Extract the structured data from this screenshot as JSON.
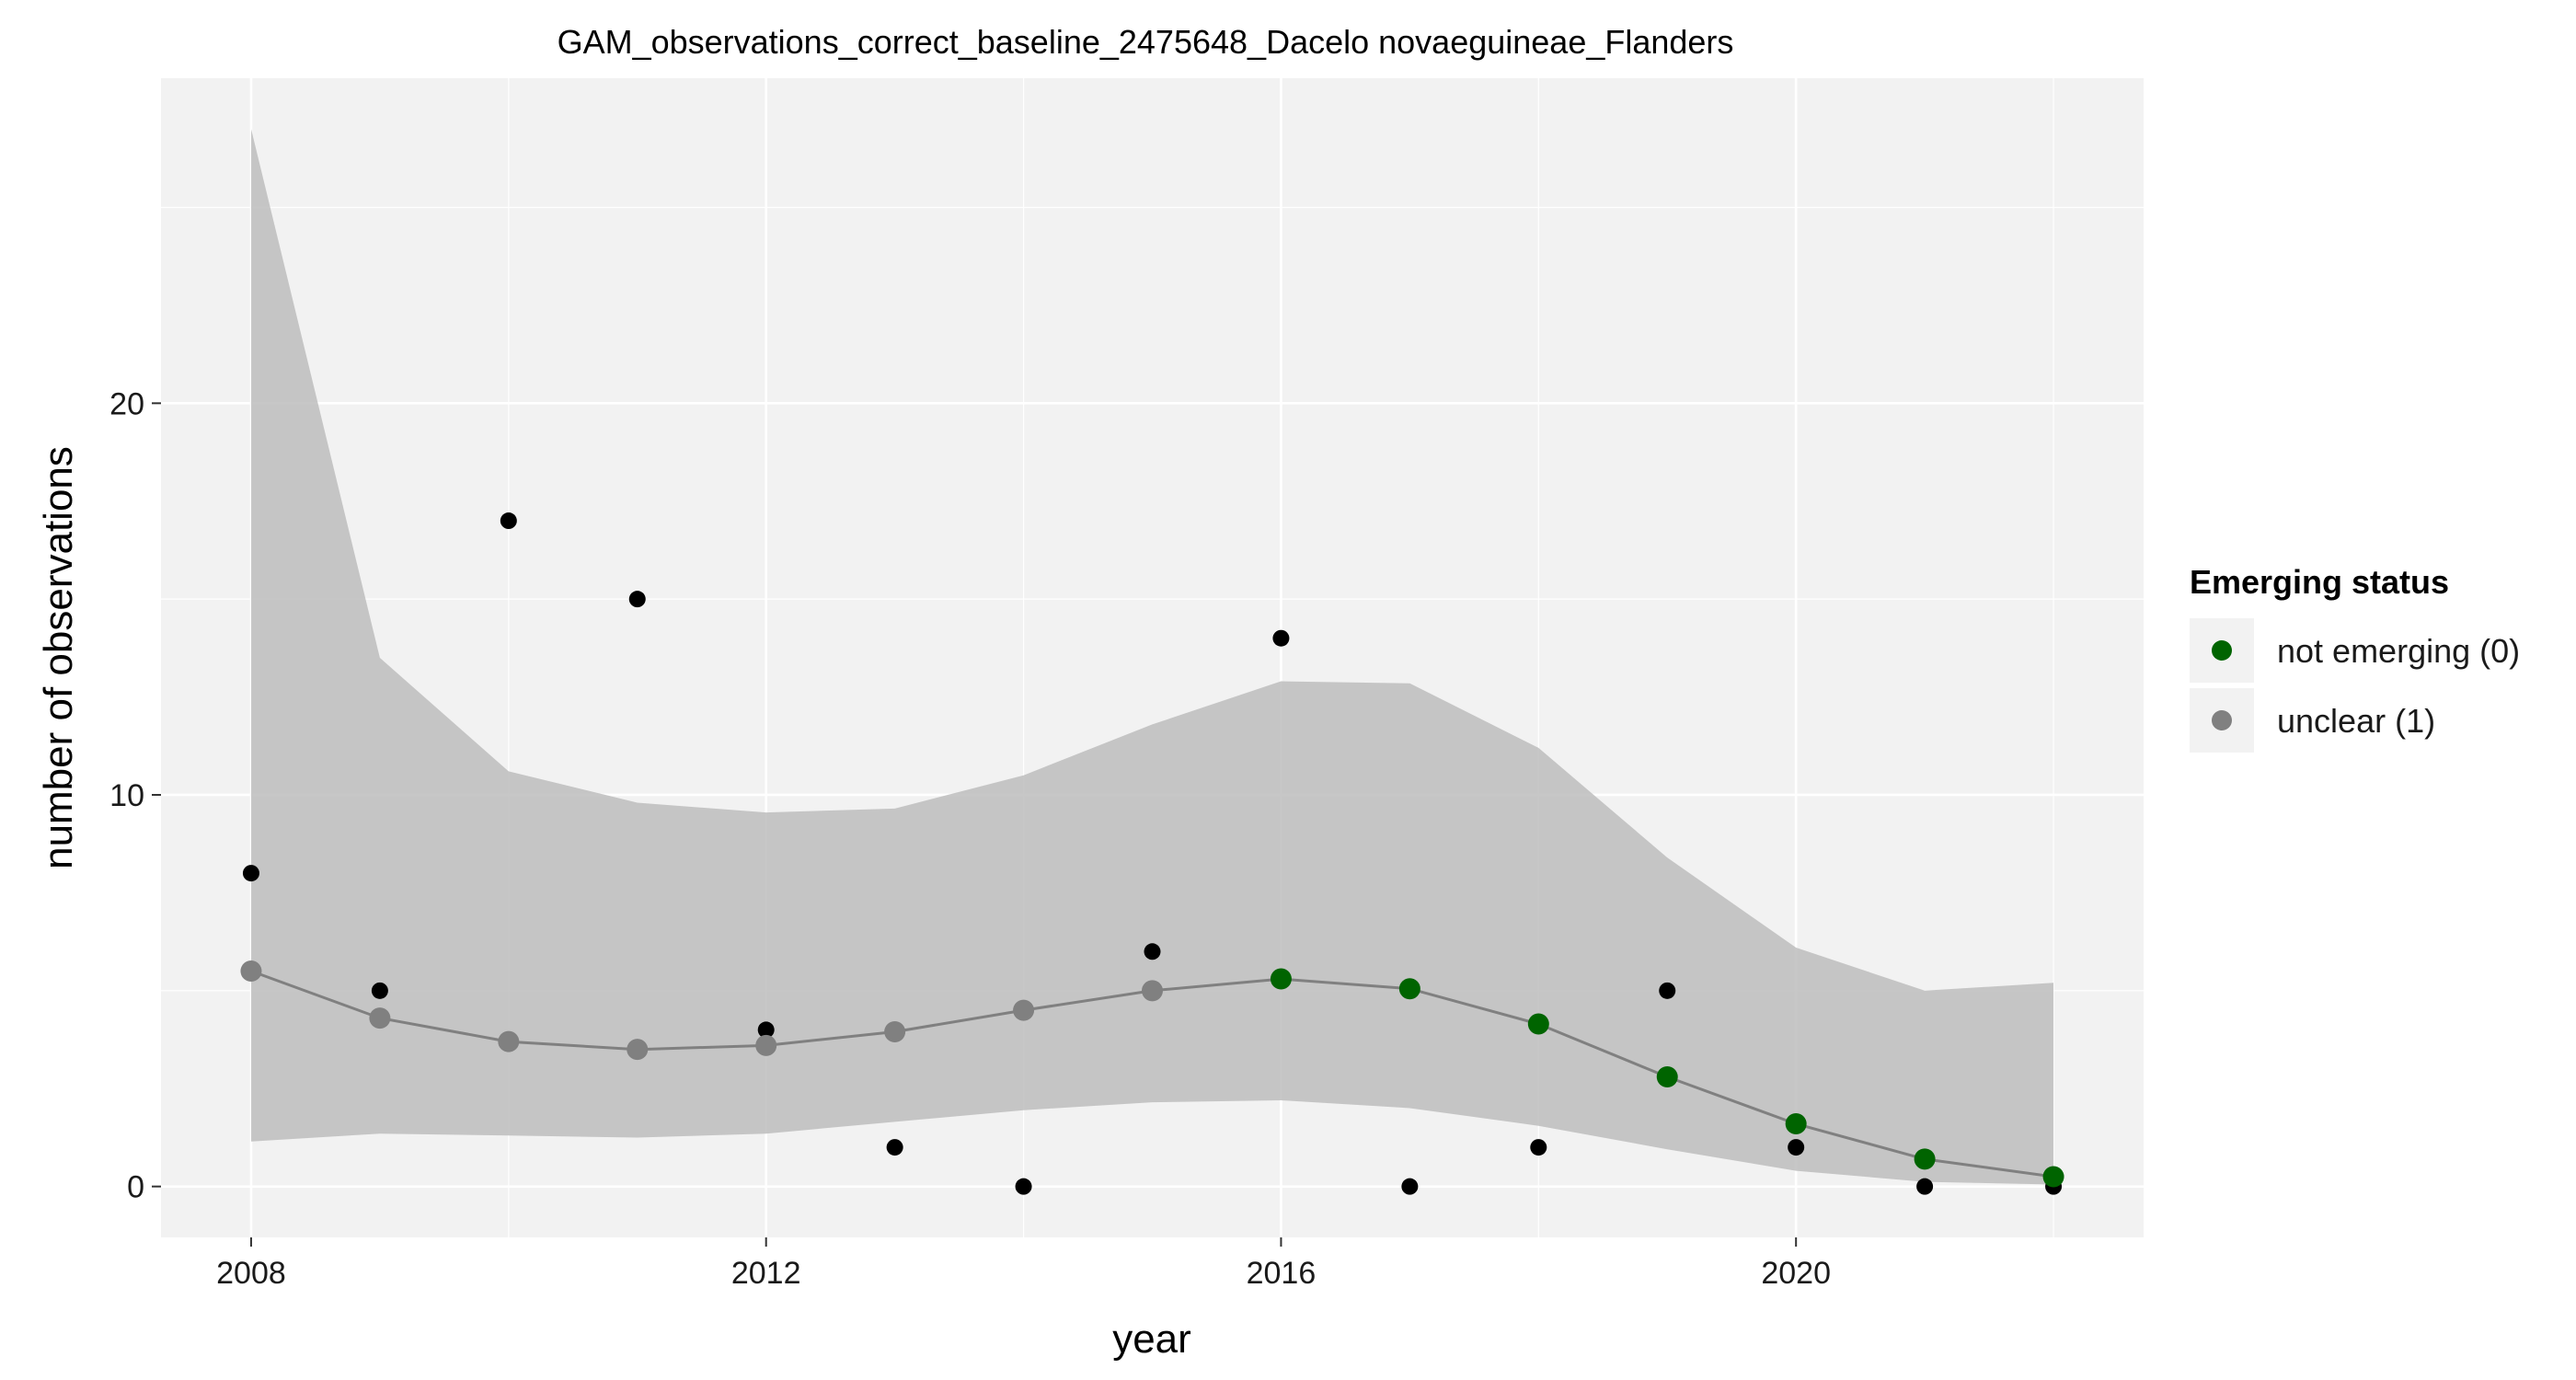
{
  "chart_data": {
    "type": "line",
    "title": "GAM_observations_correct_baseline_2475648_Dacelo novaeguineae_Flanders",
    "xlabel": "year",
    "ylabel": "number of observations",
    "xlim": [
      2007.3,
      2022.7
    ],
    "ylim": [
      -1.3,
      28.3
    ],
    "x_ticks": [
      2008,
      2012,
      2016,
      2020
    ],
    "y_ticks": [
      0,
      10,
      20
    ],
    "grid": true,
    "legend": {
      "title": "Emerging status",
      "position": "right",
      "entries": [
        {
          "label": "not emerging (0)",
          "color": "#006400"
        },
        {
          "label": "unclear (1)",
          "color": "#808080"
        }
      ]
    },
    "observed": {
      "x": [
        2008,
        2009,
        2010,
        2011,
        2012,
        2013,
        2014,
        2015,
        2016,
        2017,
        2018,
        2019,
        2020,
        2021,
        2022
      ],
      "y": [
        8,
        5,
        17,
        15,
        4,
        1,
        0,
        6,
        14,
        0,
        1,
        5,
        1,
        0,
        0
      ],
      "color": "#000000"
    },
    "fitted": {
      "x": [
        2008,
        2009,
        2010,
        2011,
        2012,
        2013,
        2014,
        2015,
        2016,
        2017,
        2018,
        2019,
        2020,
        2021,
        2022
      ],
      "y": [
        5.5,
        4.3,
        3.7,
        3.5,
        3.6,
        3.95,
        4.5,
        5.0,
        5.3,
        5.05,
        4.15,
        2.8,
        1.6,
        0.7,
        0.25
      ],
      "lower": [
        1.15,
        1.35,
        1.3,
        1.25,
        1.35,
        1.65,
        1.95,
        2.15,
        2.2,
        2.0,
        1.55,
        0.95,
        0.4,
        0.12,
        0.05
      ],
      "upper": [
        27.0,
        13.5,
        10.6,
        9.8,
        9.55,
        9.65,
        10.5,
        11.8,
        12.9,
        12.85,
        11.2,
        8.4,
        6.1,
        5.0,
        5.2
      ],
      "status": [
        "unclear (1)",
        "unclear (1)",
        "unclear (1)",
        "unclear (1)",
        "unclear (1)",
        "unclear (1)",
        "unclear (1)",
        "unclear (1)",
        "not emerging (0)",
        "not emerging (0)",
        "not emerging (0)",
        "not emerging (0)",
        "not emerging (0)",
        "not emerging (0)",
        "not emerging (0)"
      ]
    },
    "colors": {
      "not_emerging": "#006400",
      "unclear": "#808080",
      "ribbon": "#bdbdbd",
      "panel": "#f2f2f2",
      "grid": "#ffffff",
      "line": "#808080"
    }
  }
}
